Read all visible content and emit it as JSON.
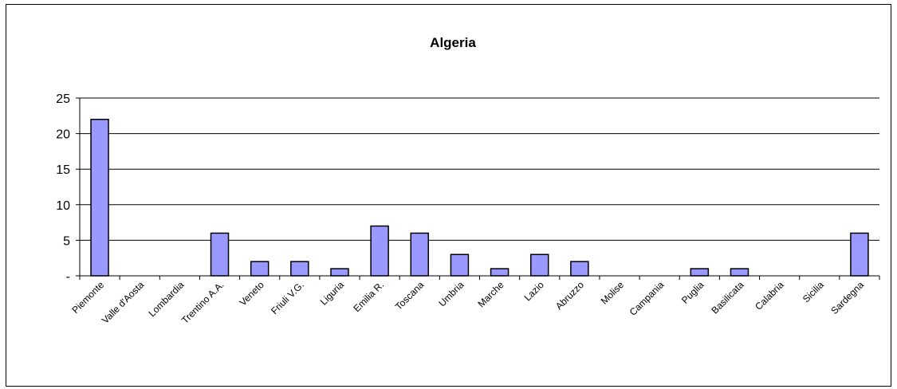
{
  "chart_data": {
    "type": "bar",
    "title": "Algeria",
    "xlabel": "",
    "ylabel": "",
    "ylim": [
      0,
      25
    ],
    "yticks": [
      0,
      5,
      10,
      15,
      20,
      25
    ],
    "ytick_labels": [
      "-",
      "5",
      "10",
      "15",
      "20",
      "25"
    ],
    "grid": true,
    "legend": "none",
    "bar_color": "#9999ff",
    "categories": [
      "Piemonte",
      "Valle d'Aosta",
      "Lombardia",
      "Trentino A.A.",
      "Veneto",
      "Friuli V.G.",
      "Liguria",
      "Emilia R.",
      "Toscana",
      "Umbria",
      "Marche",
      "Lazio",
      "Abruzzo",
      "Molise",
      "Campania",
      "Puglia",
      "Basilicata",
      "Calabria",
      "Sicilia",
      "Sardegna"
    ],
    "values": [
      22,
      0,
      0,
      6,
      2,
      2,
      1,
      7,
      6,
      3,
      1,
      3,
      2,
      0,
      0,
      1,
      1,
      0,
      0,
      6
    ]
  }
}
